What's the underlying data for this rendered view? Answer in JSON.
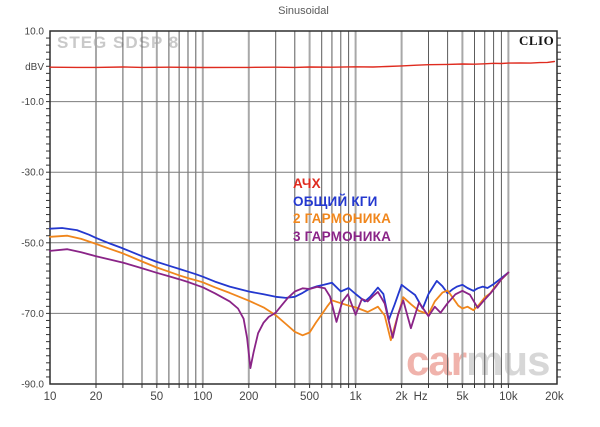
{
  "header": {
    "title": "Sinusoidal"
  },
  "overlays": {
    "device_label": "STEG SDSP 8",
    "brand": "CLIO",
    "watermark_left": "car",
    "watermark_right": "mus"
  },
  "chart_data": {
    "type": "line",
    "title": "Sinusoidal",
    "x_axis": {
      "scale": "log",
      "unit": "Hz",
      "min": 10,
      "max": 20000,
      "ticks": [
        {
          "f": 10,
          "label": "10"
        },
        {
          "f": 20,
          "label": "20"
        },
        {
          "f": 50,
          "label": "50"
        },
        {
          "f": 100,
          "label": "100"
        },
        {
          "f": 200,
          "label": "200"
        },
        {
          "f": 500,
          "label": "500"
        },
        {
          "f": 1000,
          "label": "1k"
        },
        {
          "f": 2000,
          "label": "2k"
        },
        {
          "f": 5000,
          "label": "5k"
        },
        {
          "f": 10000,
          "label": "10k"
        },
        {
          "f": 20000,
          "label": "20k"
        }
      ]
    },
    "y_axis": {
      "unit": "dBV",
      "min": -90,
      "max": 10,
      "minor_tick_step": 2,
      "gridlines": [
        -10,
        -30,
        -50,
        -70
      ],
      "ticks": [
        {
          "v": 10,
          "label": "10.0"
        },
        {
          "v": 0,
          "label": "dBV"
        },
        {
          "v": -10,
          "label": "-10.0"
        },
        {
          "v": -30,
          "label": "-30.0"
        },
        {
          "v": -50,
          "label": "-50.0"
        },
        {
          "v": -70,
          "label": "-70.0"
        },
        {
          "v": -90,
          "label": "-90.0"
        }
      ]
    },
    "grid": {
      "major": [
        20,
        50,
        100,
        200,
        500,
        1000,
        2000,
        5000,
        10000
      ],
      "minor": [
        30,
        40,
        60,
        70,
        80,
        90,
        300,
        400,
        600,
        700,
        800,
        900,
        3000,
        4000,
        6000,
        7000,
        8000,
        9000
      ]
    },
    "series": [
      {
        "id": "afr",
        "name": "АЧХ",
        "color": "#df2b1f",
        "width": 1.4,
        "points": [
          [
            10,
            -0.25
          ],
          [
            15,
            -0.3
          ],
          [
            20,
            -0.3
          ],
          [
            30,
            -0.2
          ],
          [
            40,
            -0.3
          ],
          [
            60,
            -0.25
          ],
          [
            100,
            -0.35
          ],
          [
            150,
            -0.3
          ],
          [
            200,
            -0.3
          ],
          [
            300,
            -0.25
          ],
          [
            400,
            -0.3
          ],
          [
            500,
            -0.2
          ],
          [
            700,
            -0.25
          ],
          [
            1000,
            -0.15
          ],
          [
            1300,
            -0.2
          ],
          [
            1600,
            -0.05
          ],
          [
            2000,
            0.1
          ],
          [
            2500,
            0.3
          ],
          [
            3000,
            0.45
          ],
          [
            4000,
            0.55
          ],
          [
            5000,
            0.65
          ],
          [
            6000,
            0.6
          ],
          [
            7000,
            0.7
          ],
          [
            8000,
            0.85
          ],
          [
            9000,
            0.8
          ],
          [
            10000,
            0.9
          ],
          [
            12000,
            0.95
          ],
          [
            14000,
            0.9
          ],
          [
            16000,
            1.05
          ],
          [
            18000,
            1.1
          ],
          [
            20000,
            1.35
          ]
        ]
      },
      {
        "id": "thd",
        "name": "ОБЩИЙ КГИ",
        "color": "#2438cf",
        "width": 1.8,
        "points": [
          [
            10,
            -46.0
          ],
          [
            12,
            -45.8
          ],
          [
            15,
            -46.4
          ],
          [
            18,
            -47.7
          ],
          [
            20,
            -48.6
          ],
          [
            25,
            -50.3
          ],
          [
            30,
            -51.6
          ],
          [
            40,
            -53.8
          ],
          [
            50,
            -55.4
          ],
          [
            60,
            -56.5
          ],
          [
            70,
            -57.4
          ],
          [
            80,
            -58.2
          ],
          [
            90,
            -58.9
          ],
          [
            100,
            -59.6
          ],
          [
            120,
            -61.0
          ],
          [
            150,
            -62.4
          ],
          [
            200,
            -63.8
          ],
          [
            250,
            -64.6
          ],
          [
            300,
            -65.3
          ],
          [
            350,
            -65.6
          ],
          [
            400,
            -65.3
          ],
          [
            450,
            -64.2
          ],
          [
            500,
            -63.0
          ],
          [
            560,
            -62.3
          ],
          [
            620,
            -61.9
          ],
          [
            700,
            -61.3
          ],
          [
            800,
            -63.8
          ],
          [
            900,
            -62.8
          ],
          [
            1000,
            -64.5
          ],
          [
            1150,
            -66.6
          ],
          [
            1250,
            -65.2
          ],
          [
            1400,
            -62.7
          ],
          [
            1520,
            -64.5
          ],
          [
            1650,
            -71.8
          ],
          [
            1800,
            -67.5
          ],
          [
            2000,
            -61.9
          ],
          [
            2200,
            -63.3
          ],
          [
            2450,
            -64.8
          ],
          [
            2750,
            -68.6
          ],
          [
            3000,
            -64.5
          ],
          [
            3400,
            -60.8
          ],
          [
            3700,
            -62.3
          ],
          [
            4000,
            -64.3
          ],
          [
            4300,
            -63.2
          ],
          [
            4600,
            -62.4
          ],
          [
            5000,
            -61.9
          ],
          [
            5400,
            -62.8
          ],
          [
            5900,
            -63.6
          ],
          [
            6300,
            -62.9
          ],
          [
            6800,
            -62.4
          ],
          [
            7300,
            -62.8
          ],
          [
            8000,
            -61.7
          ],
          [
            9000,
            -60.0
          ],
          [
            10000,
            -58.4
          ]
        ]
      },
      {
        "id": "h2",
        "name": "2 ГАРМОНИКА",
        "color": "#f0861c",
        "width": 1.8,
        "points": [
          [
            10,
            -48.3
          ],
          [
            13,
            -48.0
          ],
          [
            16,
            -48.9
          ],
          [
            20,
            -50.3
          ],
          [
            25,
            -51.8
          ],
          [
            30,
            -53.0
          ],
          [
            40,
            -55.3
          ],
          [
            50,
            -57.0
          ],
          [
            60,
            -58.2
          ],
          [
            70,
            -59.2
          ],
          [
            80,
            -60.0
          ],
          [
            90,
            -60.6
          ],
          [
            100,
            -61.2
          ],
          [
            120,
            -62.6
          ],
          [
            150,
            -64.2
          ],
          [
            200,
            -66.4
          ],
          [
            250,
            -68.3
          ],
          [
            300,
            -70.5
          ],
          [
            350,
            -73.0
          ],
          [
            400,
            -75.2
          ],
          [
            450,
            -76.2
          ],
          [
            500,
            -75.4
          ],
          [
            550,
            -72.6
          ],
          [
            600,
            -70.3
          ],
          [
            650,
            -68.1
          ],
          [
            700,
            -66.3
          ],
          [
            800,
            -67.1
          ],
          [
            900,
            -67.8
          ],
          [
            1000,
            -68.3
          ],
          [
            1200,
            -69.6
          ],
          [
            1400,
            -68.1
          ],
          [
            1550,
            -70.6
          ],
          [
            1700,
            -77.6
          ],
          [
            1850,
            -72.0
          ],
          [
            2050,
            -65.4
          ],
          [
            2300,
            -67.4
          ],
          [
            2600,
            -69.3
          ],
          [
            3000,
            -70.2
          ],
          [
            3300,
            -66.6
          ],
          [
            3700,
            -64.1
          ],
          [
            4000,
            -63.5
          ],
          [
            4300,
            -65.4
          ],
          [
            4700,
            -67.8
          ],
          [
            5000,
            -68.6
          ],
          [
            5400,
            -68.1
          ],
          [
            5900,
            -69.1
          ],
          [
            6400,
            -67.6
          ],
          [
            7000,
            -65.5
          ],
          [
            7600,
            -64.3
          ],
          [
            8200,
            -62.4
          ],
          [
            9000,
            -60.4
          ],
          [
            10000,
            -58.4
          ]
        ]
      },
      {
        "id": "h3",
        "name": "3 ГАРМОНИКА",
        "color": "#8a2487",
        "width": 1.8,
        "points": [
          [
            10,
            -52.3
          ],
          [
            13,
            -51.8
          ],
          [
            16,
            -52.7
          ],
          [
            20,
            -53.8
          ],
          [
            25,
            -54.8
          ],
          [
            30,
            -55.6
          ],
          [
            40,
            -57.2
          ],
          [
            50,
            -58.5
          ],
          [
            60,
            -59.5
          ],
          [
            70,
            -60.3
          ],
          [
            80,
            -61.1
          ],
          [
            90,
            -61.9
          ],
          [
            100,
            -62.6
          ],
          [
            120,
            -64.3
          ],
          [
            150,
            -66.6
          ],
          [
            170,
            -68.6
          ],
          [
            185,
            -71.5
          ],
          [
            195,
            -77.0
          ],
          [
            205,
            -85.5
          ],
          [
            215,
            -81.0
          ],
          [
            230,
            -75.6
          ],
          [
            250,
            -72.6
          ],
          [
            270,
            -71.0
          ],
          [
            300,
            -69.8
          ],
          [
            330,
            -67.6
          ],
          [
            360,
            -65.6
          ],
          [
            400,
            -63.8
          ],
          [
            450,
            -62.9
          ],
          [
            500,
            -63.1
          ],
          [
            560,
            -62.5
          ],
          [
            630,
            -62.9
          ],
          [
            680,
            -65.2
          ],
          [
            750,
            -72.4
          ],
          [
            820,
            -66.6
          ],
          [
            890,
            -64.6
          ],
          [
            1000,
            -70.4
          ],
          [
            1100,
            -65.9
          ],
          [
            1200,
            -66.6
          ],
          [
            1300,
            -65.1
          ],
          [
            1400,
            -63.9
          ],
          [
            1550,
            -67.2
          ],
          [
            1750,
            -76.9
          ],
          [
            1900,
            -70.2
          ],
          [
            2050,
            -66.3
          ],
          [
            2300,
            -74.2
          ],
          [
            2600,
            -66.9
          ],
          [
            3000,
            -70.8
          ],
          [
            3300,
            -68.1
          ],
          [
            3600,
            -69.8
          ],
          [
            4000,
            -67.1
          ],
          [
            4500,
            -64.6
          ],
          [
            5000,
            -63.6
          ],
          [
            5600,
            -64.7
          ],
          [
            6300,
            -68.4
          ],
          [
            7000,
            -66.1
          ],
          [
            7700,
            -64.1
          ],
          [
            8300,
            -62.4
          ],
          [
            9000,
            -60.3
          ],
          [
            10000,
            -58.4
          ]
        ]
      }
    ]
  }
}
